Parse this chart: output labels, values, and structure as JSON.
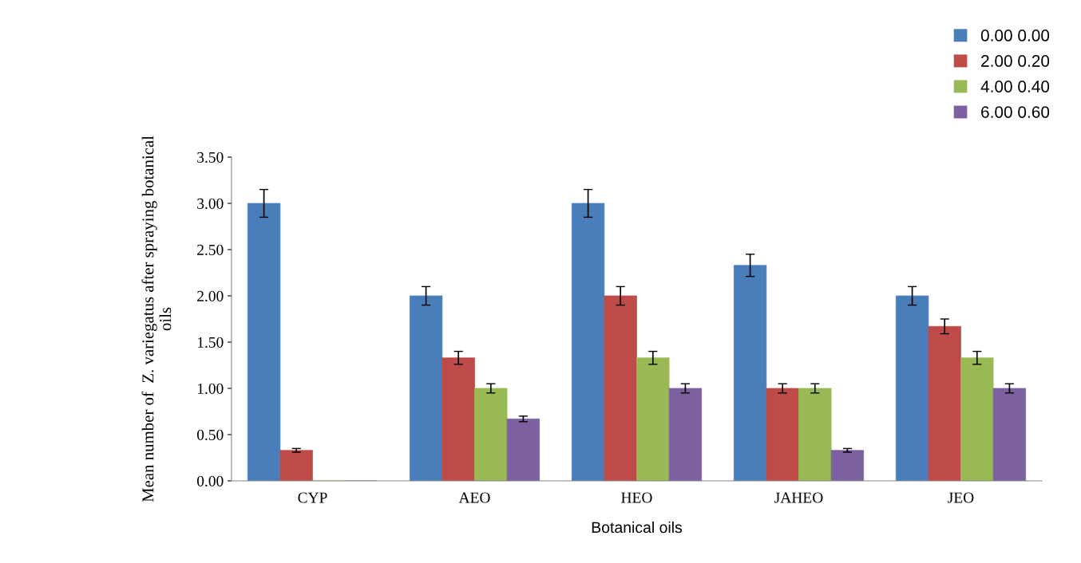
{
  "chart_data": {
    "type": "bar",
    "xlabel": "Botanical oils",
    "ylabel": "Mean number of  Z. variegatus after spraying botanical\noils",
    "categories": [
      "CYP",
      "AEO",
      "HEO",
      "JAHEO",
      "JEO"
    ],
    "series": [
      {
        "name": "0.00 0.00",
        "color": "#4a7ebb",
        "values": [
          3.0,
          2.0,
          3.0,
          2.33,
          2.0
        ],
        "errors": [
          0.15,
          0.1,
          0.15,
          0.12,
          0.1
        ]
      },
      {
        "name": "2.00 0.20",
        "color": "#be4b48",
        "values": [
          0.33,
          1.33,
          2.0,
          1.0,
          1.67
        ],
        "errors": [
          0.02,
          0.07,
          0.1,
          0.05,
          0.08
        ]
      },
      {
        "name": "4.00 0.40",
        "color": "#98b954",
        "values": [
          0.0,
          1.0,
          1.33,
          1.0,
          1.33
        ],
        "errors": [
          null,
          0.05,
          0.07,
          0.05,
          0.07
        ]
      },
      {
        "name": "6.00 0.60",
        "color": "#7d60a0",
        "values": [
          0.0,
          0.67,
          1.0,
          0.33,
          1.0
        ],
        "errors": [
          null,
          0.03,
          0.05,
          0.02,
          0.05
        ]
      }
    ],
    "ylim": [
      0,
      3.5
    ],
    "yticks": [
      {
        "value": 0,
        "label": "0.00"
      },
      {
        "value": 0.5,
        "label": "0.50"
      },
      {
        "value": 1,
        "label": "1.00"
      },
      {
        "value": 1.5,
        "label": "1.50"
      },
      {
        "value": 2,
        "label": "2.00"
      },
      {
        "value": 2.5,
        "label": "2.50"
      },
      {
        "value": 3,
        "label": "3.00"
      },
      {
        "value": 3.5,
        "label": "3.50"
      }
    ],
    "grid": false,
    "legend": "top right"
  }
}
